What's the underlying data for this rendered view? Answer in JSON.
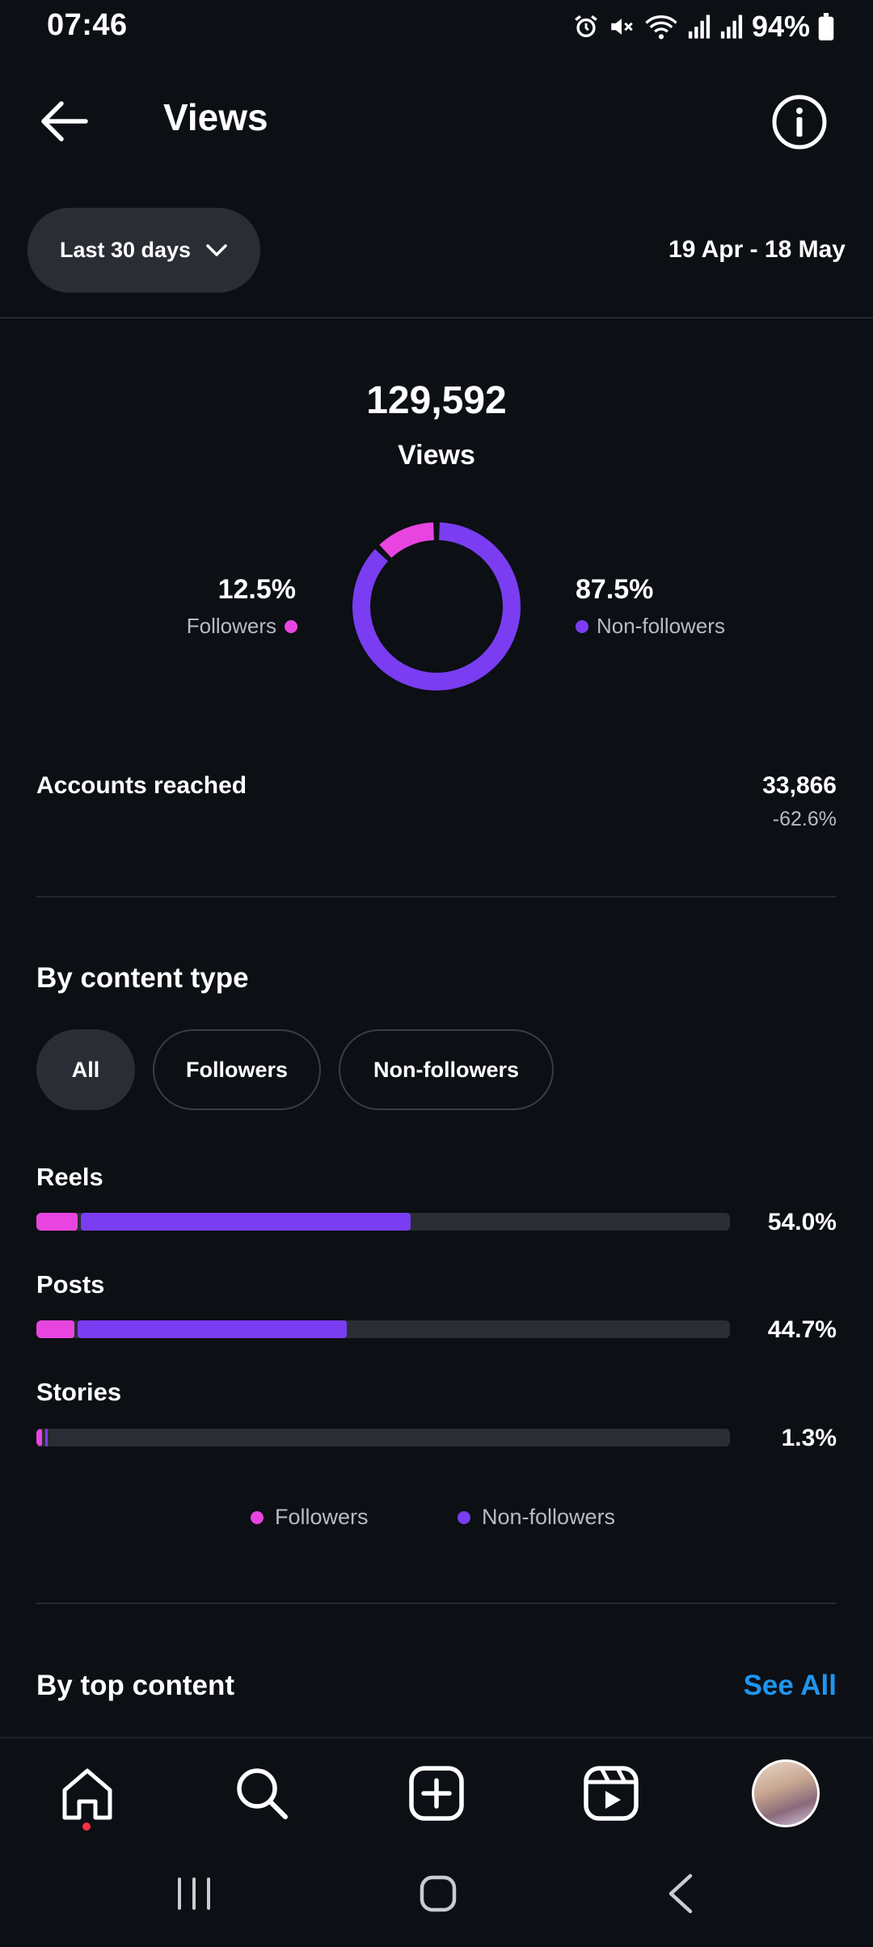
{
  "status_bar": {
    "time": "07:46",
    "battery": "94%"
  },
  "header": {
    "title": "Views"
  },
  "filter": {
    "range_label": "Last 30 days",
    "date_range": "19 Apr - 18 May"
  },
  "summary": {
    "total": "129,592",
    "label": "Views",
    "followers_pct": "12.5%",
    "followers_label": "Followers",
    "non_followers_pct": "87.5%",
    "non_followers_label": "Non-followers",
    "followers_fraction": 0.125
  },
  "accounts_reached": {
    "label": "Accounts reached",
    "value": "33,866",
    "change": "-62.6%"
  },
  "content_type": {
    "heading": "By content type",
    "tabs": [
      {
        "label": "All",
        "active": true
      },
      {
        "label": "Followers",
        "active": false
      },
      {
        "label": "Non-followers",
        "active": false
      }
    ],
    "rows": [
      {
        "label": "Reels",
        "pct": "54.0%",
        "followers": 0.06,
        "non_followers": 0.48
      },
      {
        "label": "Posts",
        "pct": "44.7%",
        "followers": 0.055,
        "non_followers": 0.392
      },
      {
        "label": "Stories",
        "pct": "1.3%",
        "followers": 0.008,
        "non_followers": 0.005
      }
    ],
    "legend": {
      "followers": "Followers",
      "non_followers": "Non-followers"
    }
  },
  "top_content": {
    "heading": "By top content",
    "see_all": "See All"
  },
  "colors": {
    "followers": "#e845e0",
    "non_followers": "#7a3df2",
    "link": "#1e96f0"
  }
}
